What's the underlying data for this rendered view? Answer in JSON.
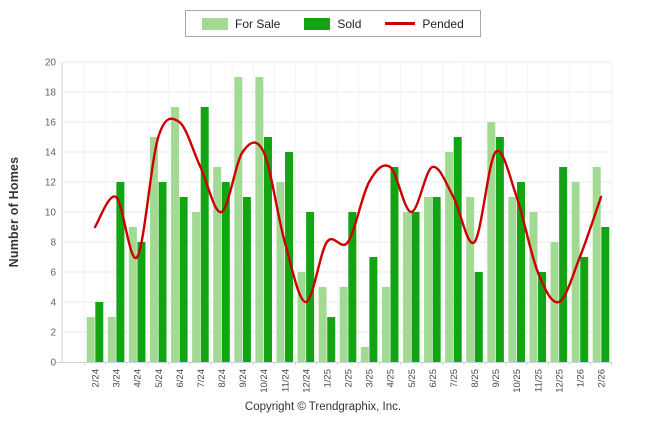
{
  "legend": {
    "items": [
      {
        "label": "For Sale",
        "type": "swatch",
        "color": "#A3DA93"
      },
      {
        "label": "Sold",
        "type": "swatch",
        "color": "#13A413"
      },
      {
        "label": "Pended",
        "type": "line",
        "color": "#CC0000"
      }
    ]
  },
  "footer": {
    "copyright": "Copyright © Trendgraphix, Inc."
  },
  "chart_data": {
    "type": "combo",
    "title": "",
    "xlabel": "",
    "ylabel": "Number of Homes",
    "ylim": [
      0,
      20
    ],
    "ytick_step": 2,
    "yticks": [
      0,
      2,
      4,
      6,
      8,
      10,
      12,
      14,
      16,
      18,
      20
    ],
    "grid": true,
    "legend_position": "top-center",
    "categories": [
      "2/24",
      "3/24",
      "4/24",
      "5/24",
      "6/24",
      "7/24",
      "8/24",
      "9/24",
      "10/24",
      "11/24",
      "12/24",
      "1/25",
      "2/25",
      "3/25",
      "4/25",
      "5/25",
      "6/25",
      "7/25",
      "8/25",
      "9/25",
      "10/25",
      "11/25",
      "12/25",
      "1/26",
      "2/26"
    ],
    "series": [
      {
        "name": "For Sale",
        "type": "bar",
        "color": "#A3DA93",
        "values": [
          3,
          3,
          9,
          15,
          17,
          10,
          13,
          19,
          19,
          12,
          6,
          5,
          5,
          1,
          5,
          10,
          11,
          14,
          11,
          16,
          11,
          10,
          8,
          12,
          13
        ]
      },
      {
        "name": "Sold",
        "type": "bar",
        "color": "#13A413",
        "values": [
          4,
          12,
          8,
          12,
          11,
          17,
          12,
          11,
          15,
          14,
          10,
          3,
          10,
          7,
          13,
          10,
          11,
          15,
          6,
          15,
          12,
          6,
          13,
          7,
          9
        ]
      },
      {
        "name": "Pended",
        "type": "line",
        "color": "#CC0000",
        "values": [
          9,
          11,
          7,
          15,
          16,
          13,
          10,
          14,
          14,
          8,
          4,
          8,
          8,
          12,
          13,
          10,
          13,
          11,
          8,
          14,
          11,
          6,
          4,
          7,
          11
        ]
      }
    ]
  },
  "colors": {
    "background": "#FFFFFF",
    "grid_h": "#EBEBEB",
    "grid_v": "#F3F3F3",
    "axis": "#C9D2DA",
    "tick_label": "#6B6157",
    "x_label": "#4A4A4A"
  }
}
